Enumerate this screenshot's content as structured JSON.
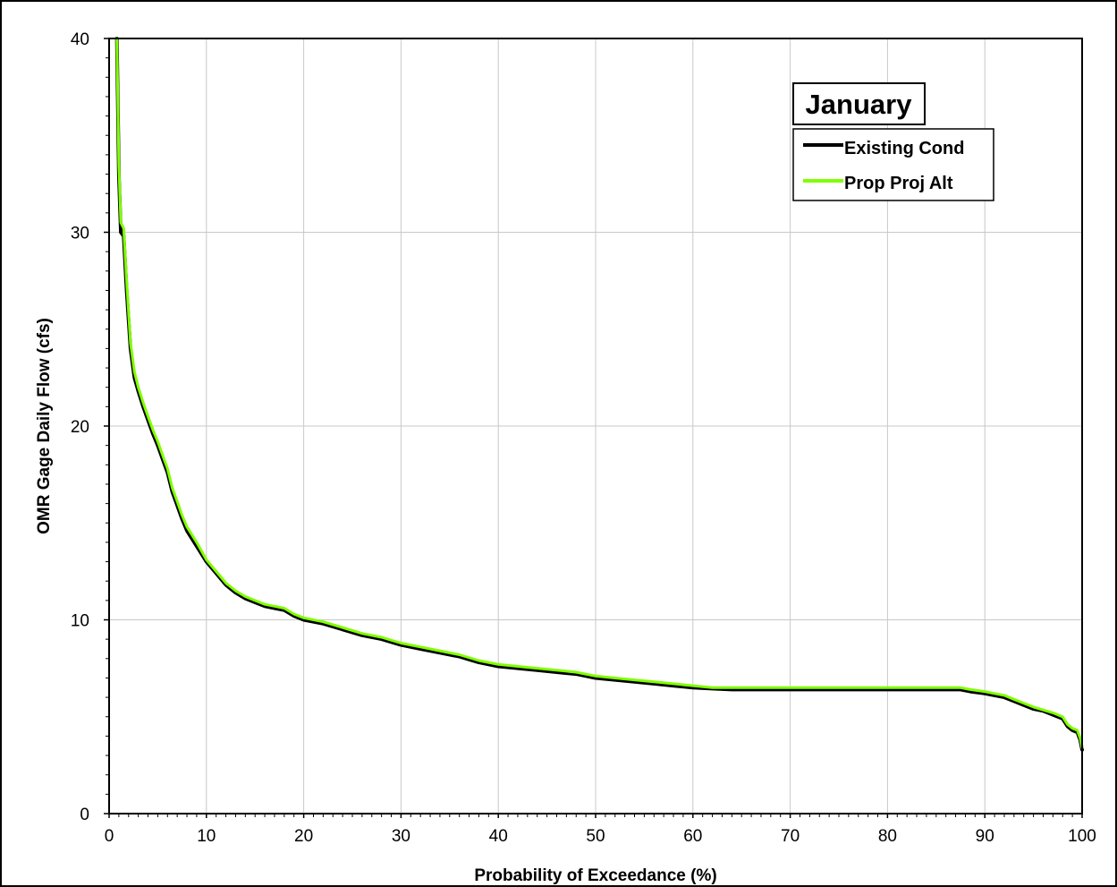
{
  "chart_data": {
    "type": "line",
    "title": "January",
    "xlabel": "Probability of Exceedance (%)",
    "ylabel": "OMR Gage Daily Flow (cfs)",
    "xlim": [
      0,
      100
    ],
    "ylim": [
      0,
      40
    ],
    "x_ticks": [
      0,
      10,
      20,
      30,
      40,
      50,
      60,
      70,
      80,
      90,
      100
    ],
    "y_ticks": [
      0,
      10,
      20,
      30,
      40
    ],
    "grid": true,
    "legend_position": "top-right",
    "series": [
      {
        "name": "Existing Cond",
        "color": "#000000",
        "x": [
          0.8,
          1.0,
          1.2,
          1.5,
          1.8,
          2.2,
          2.6,
          3.0,
          3.5,
          4.0,
          4.5,
          5.0,
          5.5,
          6.0,
          6.5,
          7.0,
          7.5,
          8.0,
          9.0,
          10.0,
          11.0,
          12.0,
          13.0,
          14.0,
          15.0,
          16.0,
          17.0,
          18.0,
          19.0,
          20.0,
          22.0,
          24.0,
          26.0,
          28.0,
          30.0,
          32.0,
          34.0,
          36.0,
          38.0,
          40.0,
          42.0,
          44.0,
          46.0,
          48.0,
          50.0,
          52.0,
          54.0,
          56.0,
          58.0,
          60.0,
          62.0,
          64.0,
          70.0,
          80.0,
          87.5,
          88.5,
          90.0,
          91.0,
          92.0,
          93.0,
          94.0,
          95.0,
          96.0,
          97.0,
          98.0,
          98.5,
          99.0,
          99.5,
          99.8,
          100.0
        ],
        "y": [
          40.0,
          33.0,
          30.0,
          29.8,
          27.0,
          24.0,
          22.5,
          21.8,
          21.0,
          20.3,
          19.6,
          19.0,
          18.3,
          17.6,
          16.6,
          15.9,
          15.2,
          14.6,
          13.8,
          13.0,
          12.4,
          11.8,
          11.4,
          11.1,
          10.9,
          10.7,
          10.6,
          10.5,
          10.2,
          10.0,
          9.8,
          9.5,
          9.2,
          9.0,
          8.7,
          8.5,
          8.3,
          8.1,
          7.8,
          7.6,
          7.5,
          7.4,
          7.3,
          7.2,
          7.0,
          6.9,
          6.8,
          6.7,
          6.6,
          6.5,
          6.45,
          6.4,
          6.4,
          6.4,
          6.4,
          6.3,
          6.2,
          6.1,
          6.0,
          5.8,
          5.6,
          5.4,
          5.3,
          5.1,
          4.9,
          4.5,
          4.3,
          4.2,
          3.8,
          3.3
        ]
      },
      {
        "name": "Prop Proj Alt",
        "color": "#80ff00",
        "x": [
          0.8,
          1.0,
          1.2,
          1.5,
          1.8,
          2.2,
          2.6,
          3.0,
          3.5,
          4.0,
          4.5,
          5.0,
          5.5,
          6.0,
          6.5,
          7.0,
          7.5,
          8.0,
          9.0,
          10.0,
          11.0,
          12.0,
          13.0,
          14.0,
          15.0,
          16.0,
          17.0,
          18.0,
          19.0,
          20.0,
          22.0,
          24.0,
          26.0,
          28.0,
          30.0,
          32.0,
          34.0,
          36.0,
          38.0,
          40.0,
          42.0,
          44.0,
          46.0,
          48.0,
          50.0,
          52.0,
          54.0,
          56.0,
          58.0,
          60.0,
          62.0,
          64.0,
          70.0,
          80.0,
          87.5,
          88.5,
          90.0,
          91.0,
          92.0,
          93.0,
          94.0,
          95.0,
          96.0,
          97.0,
          98.0,
          98.5,
          99.0,
          99.5,
          99.8,
          100.0
        ],
        "y": [
          40.0,
          33.5,
          30.5,
          30.2,
          27.5,
          24.3,
          22.8,
          22.0,
          21.2,
          20.5,
          19.8,
          19.2,
          18.5,
          17.8,
          16.8,
          16.1,
          15.4,
          14.8,
          14.0,
          13.1,
          12.5,
          11.9,
          11.5,
          11.2,
          11.0,
          10.8,
          10.7,
          10.6,
          10.3,
          10.1,
          9.9,
          9.6,
          9.3,
          9.1,
          8.8,
          8.6,
          8.4,
          8.2,
          7.9,
          7.7,
          7.6,
          7.5,
          7.4,
          7.3,
          7.1,
          7.0,
          6.9,
          6.8,
          6.7,
          6.6,
          6.5,
          6.5,
          6.5,
          6.5,
          6.5,
          6.4,
          6.3,
          6.2,
          6.1,
          5.9,
          5.7,
          5.5,
          5.35,
          5.2,
          5.0,
          4.6,
          4.4,
          4.3,
          3.9,
          3.4
        ]
      }
    ]
  }
}
